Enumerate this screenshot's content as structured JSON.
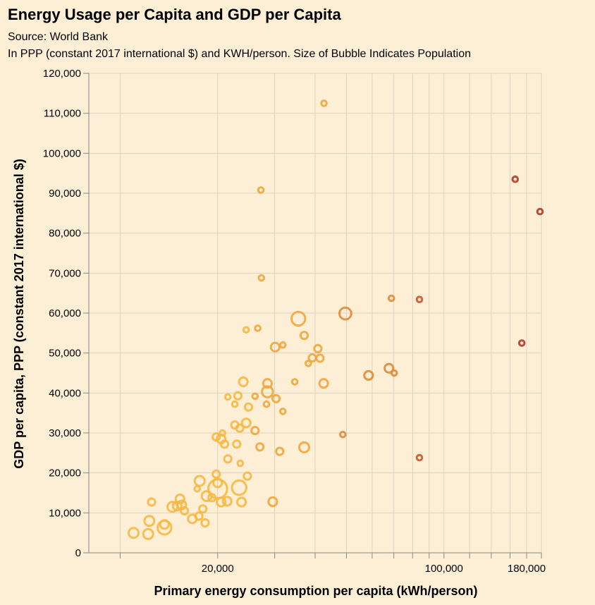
{
  "chart_data": {
    "type": "scatter",
    "title": "Energy Usage per Capita and GDP per Capita",
    "subtitle_lines": [
      "Source: World Bank",
      "In PPP (constant 2017 international $) and KWH/person. Size of Bubble Indicates Population"
    ],
    "xlabel": "Primary energy consumption per capita (kWh/person)",
    "ylabel": "GDP per capita, PPP (constant 2017 international $)",
    "x_scale": "log",
    "xlim": [
      8000,
      200000
    ],
    "ylim": [
      0,
      120000
    ],
    "x_ticks": [
      20000,
      100000,
      180000
    ],
    "x_tick_labels": [
      "20,000",
      "100,000",
      "180,000"
    ],
    "x_grid": [
      10000,
      20000,
      30000,
      40000,
      50000,
      60000,
      70000,
      80000,
      90000,
      100000,
      120000,
      140000,
      160000,
      180000,
      200000
    ],
    "y_ticks": [
      0,
      10000,
      20000,
      30000,
      40000,
      50000,
      60000,
      70000,
      80000,
      90000,
      100000,
      110000,
      120000
    ],
    "y_tick_labels": [
      "0",
      "10,000",
      "20,000",
      "30,000",
      "40,000",
      "50,000",
      "60,000",
      "70,000",
      "80,000",
      "90,000",
      "100,000",
      "110,000",
      "120,000"
    ],
    "grid": true,
    "colors": [
      "#f7b843",
      "#efa63c",
      "#e08a36",
      "#c8572d",
      "#b23a2a"
    ],
    "points": [
      {
        "x": 11000,
        "y": 5000,
        "size": 4
      },
      {
        "x": 12200,
        "y": 4700,
        "size": 4
      },
      {
        "x": 12300,
        "y": 8000,
        "size": 4
      },
      {
        "x": 13700,
        "y": 6300,
        "size": 8
      },
      {
        "x": 13700,
        "y": 7100,
        "size": 3
      },
      {
        "x": 12500,
        "y": 12700,
        "size": 2
      },
      {
        "x": 14500,
        "y": 11500,
        "size": 4
      },
      {
        "x": 15000,
        "y": 11700,
        "size": 3
      },
      {
        "x": 15300,
        "y": 13500,
        "size": 3
      },
      {
        "x": 15500,
        "y": 12000,
        "size": 3
      },
      {
        "x": 15800,
        "y": 10500,
        "size": 2
      },
      {
        "x": 16700,
        "y": 8500,
        "size": 3
      },
      {
        "x": 17300,
        "y": 16000,
        "size": 1
      },
      {
        "x": 17500,
        "y": 9200,
        "size": 2
      },
      {
        "x": 17600,
        "y": 18000,
        "size": 4
      },
      {
        "x": 18000,
        "y": 11000,
        "size": 2
      },
      {
        "x": 18300,
        "y": 7500,
        "size": 2
      },
      {
        "x": 18500,
        "y": 14200,
        "size": 4
      },
      {
        "x": 19200,
        "y": 13800,
        "size": 2
      },
      {
        "x": 19800,
        "y": 29000,
        "size": 2
      },
      {
        "x": 19800,
        "y": 19700,
        "size": 2
      },
      {
        "x": 20000,
        "y": 17500,
        "size": 3
      },
      {
        "x": 20000,
        "y": 16000,
        "size": 16
      },
      {
        "x": 20500,
        "y": 12700,
        "size": 3
      },
      {
        "x": 20500,
        "y": 28500,
        "size": 3
      },
      {
        "x": 20700,
        "y": 30000,
        "size": 1
      },
      {
        "x": 21000,
        "y": 27200,
        "size": 2
      },
      {
        "x": 21400,
        "y": 12900,
        "size": 3
      },
      {
        "x": 21500,
        "y": 23500,
        "size": 2
      },
      {
        "x": 21500,
        "y": 39000,
        "size": 1
      },
      {
        "x": 22600,
        "y": 37200,
        "size": 1
      },
      {
        "x": 22600,
        "y": 32000,
        "size": 2
      },
      {
        "x": 22900,
        "y": 27200,
        "size": 2
      },
      {
        "x": 23100,
        "y": 39300,
        "size": 2
      },
      {
        "x": 23300,
        "y": 16300,
        "size": 9
      },
      {
        "x": 23400,
        "y": 31200,
        "size": 2
      },
      {
        "x": 23500,
        "y": 22400,
        "size": 1
      },
      {
        "x": 23700,
        "y": 12700,
        "size": 3
      },
      {
        "x": 24000,
        "y": 42800,
        "size": 3
      },
      {
        "x": 24500,
        "y": 32500,
        "size": 3
      },
      {
        "x": 24500,
        "y": 55800,
        "size": 1
      },
      {
        "x": 24700,
        "y": 19200,
        "size": 2
      },
      {
        "x": 24900,
        "y": 36500,
        "size": 2
      },
      {
        "x": 26100,
        "y": 39200,
        "size": 1
      },
      {
        "x": 26100,
        "y": 30600,
        "size": 2
      },
      {
        "x": 26600,
        "y": 56200,
        "size": 1
      },
      {
        "x": 27000,
        "y": 26500,
        "size": 2
      },
      {
        "x": 27200,
        "y": 90800,
        "size": 1
      },
      {
        "x": 27300,
        "y": 68800,
        "size": 1
      },
      {
        "x": 28300,
        "y": 37200,
        "size": 1
      },
      {
        "x": 28500,
        "y": 42400,
        "size": 3
      },
      {
        "x": 28500,
        "y": 40300,
        "size": 5
      },
      {
        "x": 29600,
        "y": 12800,
        "size": 3
      },
      {
        "x": 30100,
        "y": 51500,
        "size": 3
      },
      {
        "x": 30300,
        "y": 38600,
        "size": 2
      },
      {
        "x": 31100,
        "y": 25400,
        "size": 2
      },
      {
        "x": 31800,
        "y": 52000,
        "size": 1
      },
      {
        "x": 31800,
        "y": 35400,
        "size": 1
      },
      {
        "x": 34600,
        "y": 42800,
        "size": 1
      },
      {
        "x": 35500,
        "y": 58600,
        "size": 8
      },
      {
        "x": 37000,
        "y": 54400,
        "size": 2
      },
      {
        "x": 37000,
        "y": 26400,
        "size": 4
      },
      {
        "x": 38100,
        "y": 47400,
        "size": 1
      },
      {
        "x": 39200,
        "y": 48800,
        "size": 2
      },
      {
        "x": 40800,
        "y": 51100,
        "size": 2
      },
      {
        "x": 41400,
        "y": 48700,
        "size": 2
      },
      {
        "x": 42500,
        "y": 42400,
        "size": 3
      },
      {
        "x": 42600,
        "y": 112500,
        "size": 1
      },
      {
        "x": 48700,
        "y": 29600,
        "size": 1
      },
      {
        "x": 49600,
        "y": 59900,
        "size": 6
      },
      {
        "x": 58500,
        "y": 44400,
        "size": 3
      },
      {
        "x": 67600,
        "y": 46200,
        "size": 3
      },
      {
        "x": 68800,
        "y": 63700,
        "size": 1
      },
      {
        "x": 70200,
        "y": 45000,
        "size": 1
      },
      {
        "x": 84000,
        "y": 63400,
        "size": 1
      },
      {
        "x": 84000,
        "y": 23800,
        "size": 1
      },
      {
        "x": 166000,
        "y": 93500,
        "size": 1
      },
      {
        "x": 174000,
        "y": 52500,
        "size": 1
      },
      {
        "x": 198000,
        "y": 85400,
        "size": 1
      }
    ]
  }
}
